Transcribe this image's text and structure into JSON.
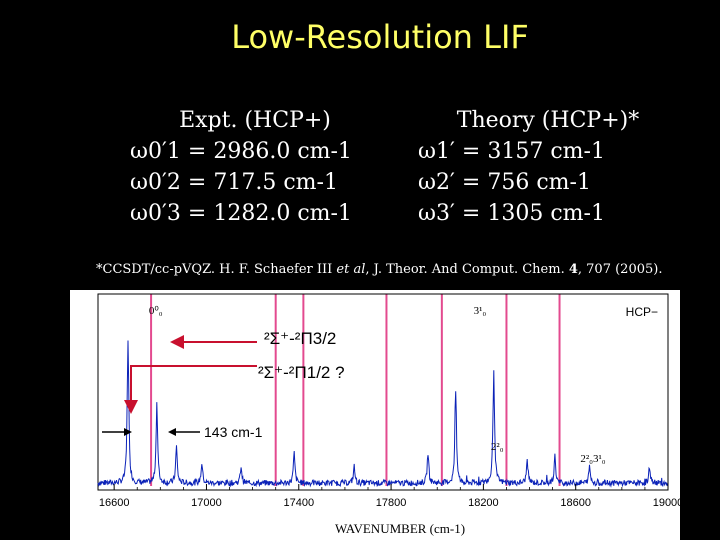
{
  "title": "Low-Resolution LIF",
  "expt": {
    "heading": "Expt. (HCP+)",
    "lines": [
      "ω0′1 = 2986.0 cm-1",
      "ω0′2 = 717.5 cm-1",
      "ω0′3 = 1282.0 cm-1"
    ]
  },
  "theory": {
    "heading": "Theory (HCP+)*",
    "lines": [
      "ω1′ = 3157 cm-1",
      "ω2′ = 756 cm-1",
      "ω3′ = 1305 cm-1"
    ]
  },
  "reference": {
    "prefix": "*CCSDT/cc-pVQZ. H. F. Schaefer III ",
    "etal": "et al",
    "middle": ", J. Theor. And Comput. Chem. ",
    "volume": "4",
    "suffix": ", 707 (2005)."
  },
  "chart_data": {
    "type": "line",
    "xlabel": "WAVENUMBER (cm-1)",
    "ylabel": "",
    "xlim": [
      16530,
      19000
    ],
    "x_ticks": [
      "16600",
      "17000",
      "17400",
      "17800",
      "18200",
      "18600",
      "19000"
    ],
    "legend": "HCP−",
    "grid": false,
    "colors": {
      "trace": "#0b22b8",
      "marker_lines": "#e34a8f",
      "annotation": "#c8102e",
      "background": "#ffffff"
    },
    "peaks": [
      {
        "x": 16660,
        "height": 0.86
      },
      {
        "x": 16785,
        "height": 0.48
      },
      {
        "x": 16870,
        "height": 0.22
      },
      {
        "x": 16980,
        "height": 0.12
      },
      {
        "x": 17150,
        "height": 0.1
      },
      {
        "x": 17380,
        "height": 0.18
      },
      {
        "x": 17640,
        "height": 0.1
      },
      {
        "x": 17960,
        "height": 0.18
      },
      {
        "x": 18080,
        "height": 0.55
      },
      {
        "x": 18245,
        "height": 0.68
      },
      {
        "x": 18390,
        "height": 0.14
      },
      {
        "x": 18510,
        "height": 0.16
      },
      {
        "x": 18660,
        "height": 0.1
      },
      {
        "x": 18920,
        "height": 0.1
      }
    ],
    "marker_lines_x": [
      16760,
      17300,
      17420,
      17780,
      18020,
      18300,
      18530
    ],
    "peak_labels": [
      {
        "x": 16780,
        "text": "0⁰₀"
      },
      {
        "x": 18185,
        "text": "3¹₀"
      },
      {
        "x": 18260,
        "text": "2²₀"
      },
      {
        "x": 18675,
        "text": "2²₀3¹₀"
      }
    ],
    "annotations": {
      "transition1": "²Σ⁺-²Π3/2",
      "transition2": "²Σ⁺-²Π1/2 ?",
      "splitting": "143 cm-1"
    }
  }
}
